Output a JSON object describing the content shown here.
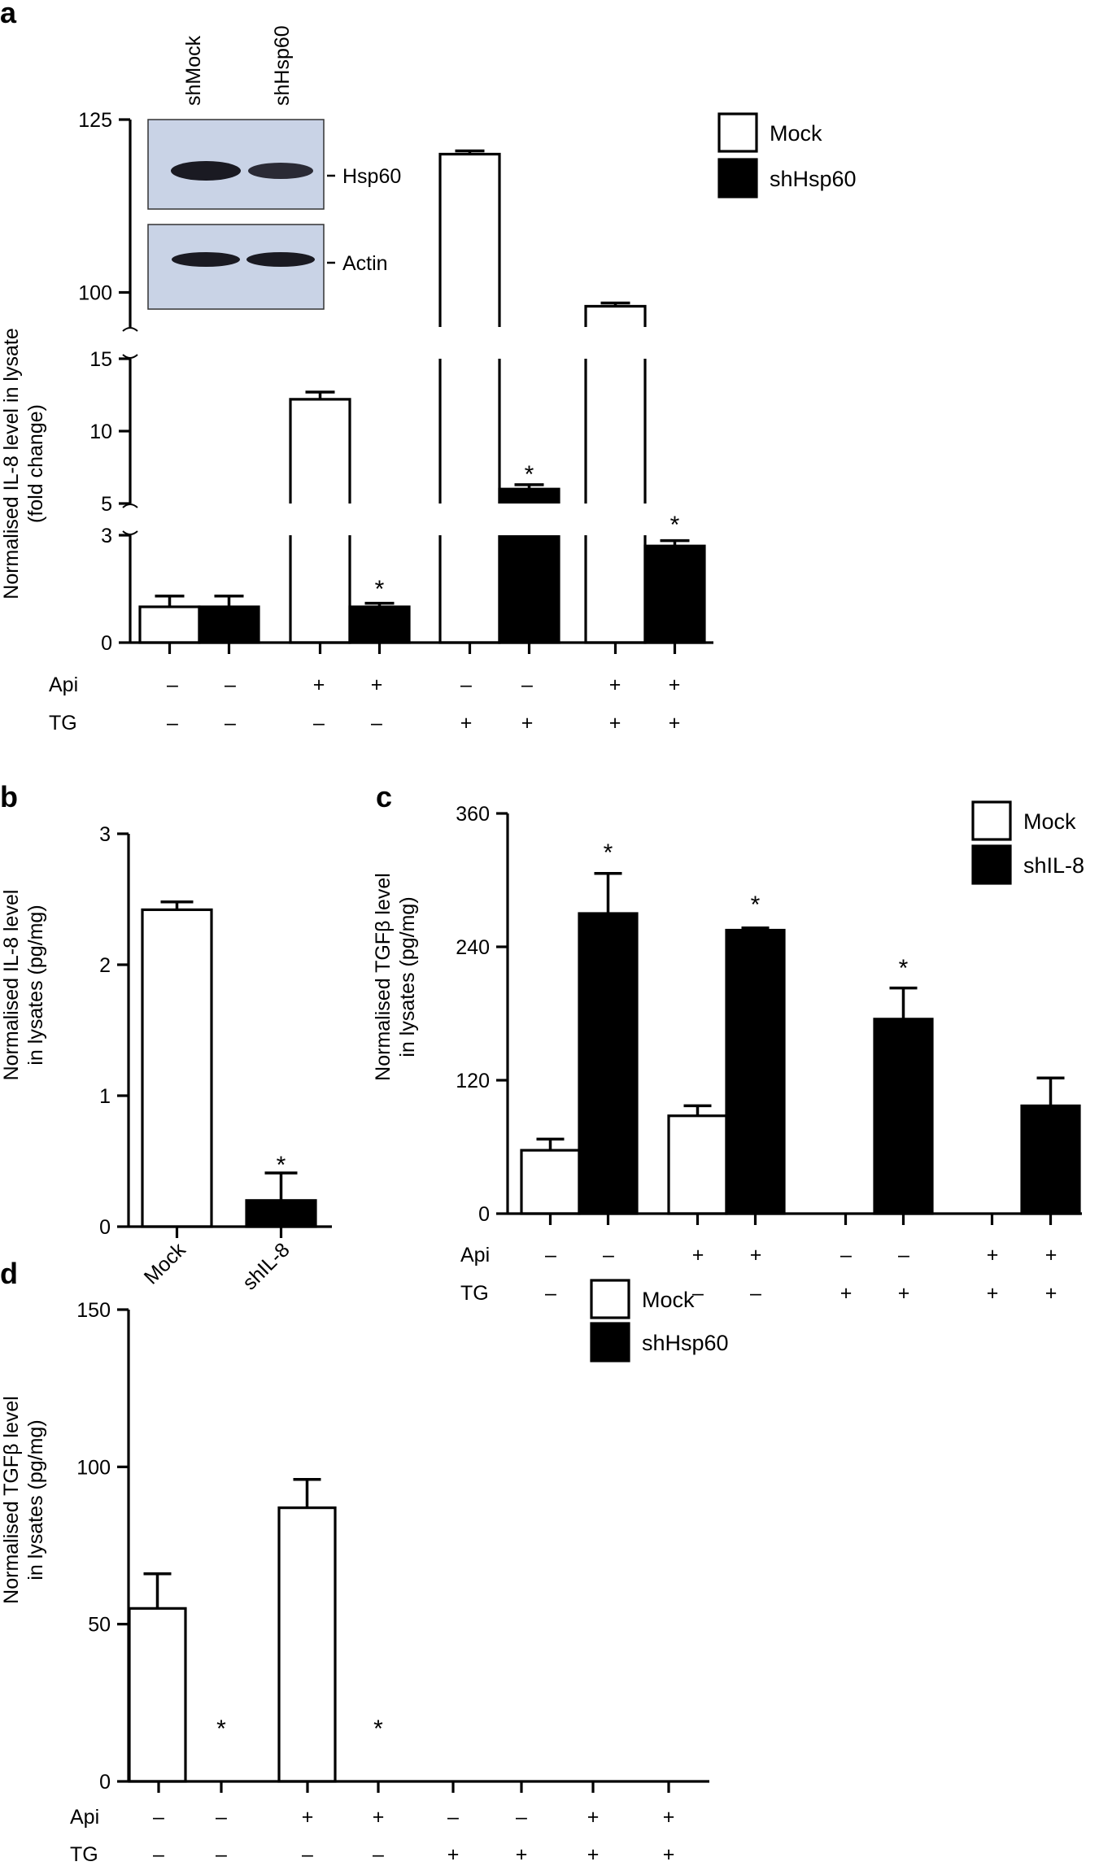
{
  "figure": {
    "colors": {
      "mock": "#ffffff",
      "treated": "#000000",
      "outline": "#000000",
      "blot_bg": "#c9d3e6",
      "band": "#1a1a22"
    }
  },
  "chart_data": [
    {
      "panel": "a",
      "type": "bar",
      "title": "",
      "ylabel": [
        "Normalised IL-8 level in lysate",
        "(fold change)"
      ],
      "broken_axis": true,
      "y_segments": [
        {
          "range": [
            0,
            3
          ],
          "ticks": [
            "0",
            "3"
          ]
        },
        {
          "range": [
            5,
            15
          ],
          "ticks": [
            "5",
            "10",
            "15"
          ]
        },
        {
          "range": [
            95,
            125
          ],
          "ticks": [
            "100",
            "125"
          ]
        }
      ],
      "legend": [
        "Mock",
        "shHsp60"
      ],
      "legend_position": "top-right",
      "conditions": [
        {
          "label": "Api",
          "values": [
            "–",
            "–",
            "+",
            "+",
            "–",
            "–",
            "+",
            "+"
          ]
        },
        {
          "label": "TG",
          "values": [
            "–",
            "–",
            "–",
            "–",
            "+",
            "+",
            "+",
            "+"
          ]
        }
      ],
      "series": [
        {
          "name": "Mock",
          "values": [
            1.0,
            12.2,
            120,
            98
          ],
          "errors": [
            0.3,
            0.5,
            0.3,
            0.3
          ]
        },
        {
          "name": "shHsp60",
          "values": [
            1.0,
            1.0,
            6.0,
            2.7
          ],
          "errors": [
            0.3,
            0.1,
            0.3,
            0.15
          ]
        }
      ],
      "significance": [
        "",
        "",
        "",
        "*",
        "",
        "*",
        "",
        "*"
      ],
      "inset": {
        "lanes": [
          "shMock",
          "shHsp60"
        ],
        "bands": [
          "Hsp60",
          "Actin"
        ]
      }
    },
    {
      "panel": "b",
      "type": "bar",
      "ylabel": [
        "Normalised IL-8 level",
        "in lysates (pg/mg)"
      ],
      "ylim": [
        0,
        3
      ],
      "ticks": [
        "0",
        "1",
        "2",
        "3"
      ],
      "categories": [
        "Mock",
        "shIL-8"
      ],
      "values": [
        2.42,
        0.2
      ],
      "errors": [
        0.06,
        0.21
      ],
      "significance": [
        "",
        "*"
      ]
    },
    {
      "panel": "c",
      "type": "bar",
      "ylabel": [
        "Normalised TGFβ level",
        "in lysates (pg/mg)"
      ],
      "ylim": [
        0,
        360
      ],
      "ticks": [
        "0",
        "120",
        "240",
        "360"
      ],
      "legend": [
        "Mock",
        "shIL-8"
      ],
      "legend_position": "top-right",
      "conditions": [
        {
          "label": "Api",
          "values": [
            "–",
            "–",
            "+",
            "+",
            "–",
            "–",
            "+",
            "+"
          ]
        },
        {
          "label": "TG",
          "values": [
            "–",
            "–",
            "–",
            "–",
            "+",
            "+",
            "+",
            "+"
          ]
        }
      ],
      "series": [
        {
          "name": "Mock",
          "values": [
            57,
            88,
            0,
            0
          ],
          "errors": [
            10,
            9,
            0,
            0
          ]
        },
        {
          "name": "shIL-8",
          "values": [
            270,
            255,
            175,
            97
          ],
          "errors": [
            36,
            2,
            28,
            25
          ]
        }
      ],
      "significance": [
        "",
        "*",
        "",
        "*",
        "",
        "*",
        "",
        ""
      ]
    },
    {
      "panel": "d",
      "type": "bar",
      "ylabel": [
        "Normalised TGFβ level",
        "in lysates (pg/mg)"
      ],
      "ylim": [
        0,
        150
      ],
      "ticks": [
        "0",
        "50",
        "100",
        "150"
      ],
      "legend": [
        "Mock",
        "shHsp60"
      ],
      "legend_position": "top-right",
      "conditions": [
        {
          "label": "Api",
          "values": [
            "–",
            "–",
            "+",
            "+",
            "–",
            "–",
            "+",
            "+"
          ]
        },
        {
          "label": "TG",
          "values": [
            "–",
            "–",
            "–",
            "–",
            "+",
            "+",
            "+",
            "+"
          ]
        }
      ],
      "series": [
        {
          "name": "Mock",
          "values": [
            55,
            87,
            0,
            0
          ],
          "errors": [
            11,
            9,
            0,
            0
          ]
        },
        {
          "name": "shHsp60",
          "values": [
            0,
            0,
            0,
            0
          ],
          "errors": [
            0,
            0,
            0,
            0
          ]
        }
      ],
      "significance": [
        "",
        "*",
        "",
        "*",
        "",
        "",
        "",
        ""
      ]
    }
  ]
}
